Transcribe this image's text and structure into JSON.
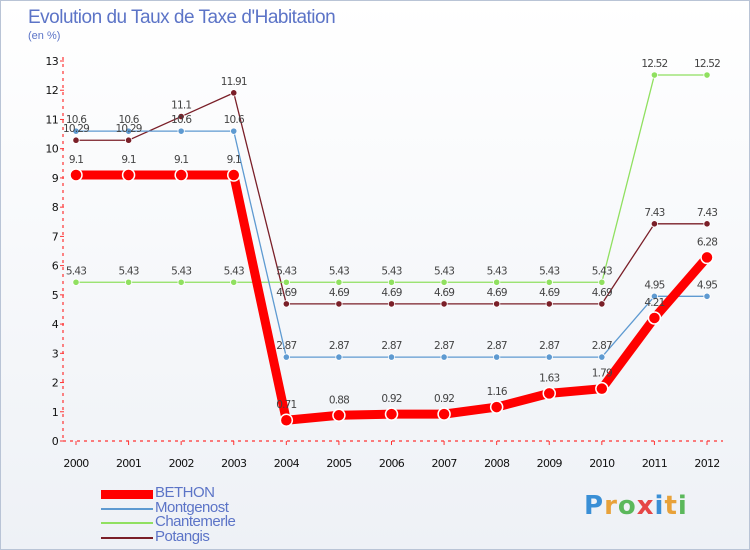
{
  "header": {
    "title": "Evolution du Taux de Taxe d'Habitation",
    "unit": "(en %)"
  },
  "logo": {
    "text": "Proxiti",
    "letters": [
      {
        "ch": "P",
        "color": "#3a8fd6"
      },
      {
        "ch": "r",
        "color": "#e8a23a"
      },
      {
        "ch": "o",
        "color": "#5bb85b"
      },
      {
        "ch": "x",
        "color": "#e64646"
      },
      {
        "ch": "i",
        "color": "#3a8fd6"
      },
      {
        "ch": "t",
        "color": "#e8a23a"
      },
      {
        "ch": "i",
        "color": "#5bb85b"
      }
    ]
  },
  "chart_data": {
    "type": "line",
    "title": "Evolution du Taux de Taxe d'Habitation",
    "ylabel": "(en %)",
    "xlabel": "",
    "x": [
      "2000",
      "2001",
      "2002",
      "2003",
      "2004",
      "2005",
      "2006",
      "2007",
      "2008",
      "2009",
      "2010",
      "2011",
      "2012"
    ],
    "ylim": [
      0,
      13
    ],
    "yticks": [
      "0",
      "1",
      "2",
      "3",
      "4",
      "5",
      "6",
      "7",
      "8",
      "9",
      "10",
      "11",
      "12",
      "13"
    ],
    "grid": false,
    "legend": "bottom-left",
    "series": [
      {
        "name": "BETHON",
        "color": "#ff0000",
        "width": 9,
        "marker": 6,
        "values": [
          9.1,
          9.1,
          9.1,
          9.1,
          0.71,
          0.88,
          0.92,
          0.92,
          1.16,
          1.63,
          1.79,
          4.21,
          6.28
        ],
        "labels": [
          "9.1",
          "9.1",
          "9.1",
          "9.1",
          "0.71",
          "0.88",
          "0.92",
          "0.92",
          "1.16",
          "1.63",
          "1.79",
          "4.21",
          "6.28"
        ]
      },
      {
        "name": "Montgenost",
        "color": "#5e9ad1",
        "width": 1.3,
        "marker": 3.2,
        "values": [
          10.6,
          10.6,
          10.6,
          10.6,
          2.87,
          2.87,
          2.87,
          2.87,
          2.87,
          2.87,
          2.87,
          4.95,
          4.95
        ],
        "labels": [
          "10.6",
          "10.6",
          "10.6",
          "10.6",
          "2.87",
          "2.87",
          "2.87",
          "2.87",
          "2.87",
          "2.87",
          "2.87",
          "4.95",
          "4.95"
        ]
      },
      {
        "name": "Chantemerle",
        "color": "#90e060",
        "width": 1.3,
        "marker": 3.2,
        "values": [
          5.43,
          5.43,
          5.43,
          5.43,
          5.43,
          5.43,
          5.43,
          5.43,
          5.43,
          5.43,
          5.43,
          12.52,
          12.52
        ],
        "labels": [
          "5.43",
          "5.43",
          "5.43",
          "5.43",
          "5.43",
          "5.43",
          "5.43",
          "5.43",
          "5.43",
          "5.43",
          "5.43",
          "12.52",
          "12.52"
        ]
      },
      {
        "name": "Potangis",
        "color": "#7a1f28",
        "width": 1.3,
        "marker": 3.2,
        "values": [
          10.29,
          10.29,
          11.1,
          11.91,
          4.69,
          4.69,
          4.69,
          4.69,
          4.69,
          4.69,
          4.69,
          7.43,
          7.43
        ],
        "labels": [
          "10.29",
          "10.29",
          "11.1",
          "11.91",
          "4.69",
          "4.69",
          "4.69",
          "4.69",
          "4.69",
          "4.69",
          "4.69",
          "7.43",
          "7.43"
        ]
      }
    ]
  }
}
